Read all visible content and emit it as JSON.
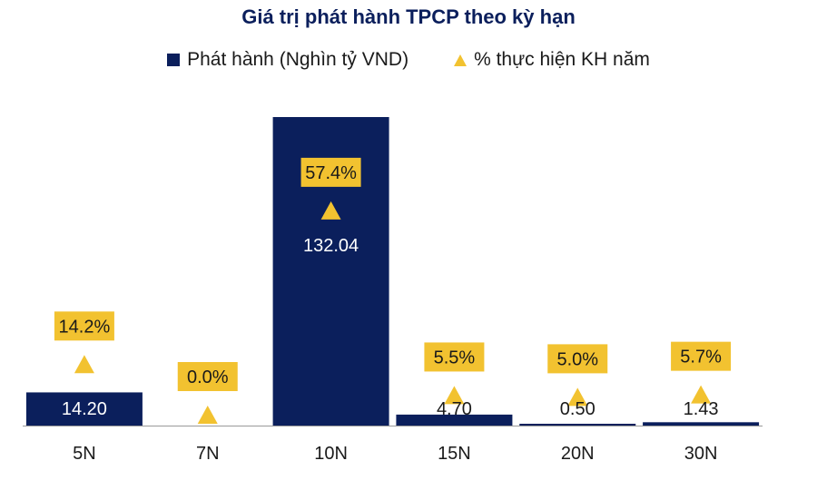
{
  "chart_data": {
    "type": "bar",
    "title": "Giá trị phát hành TPCP theo kỳ hạn",
    "categories": [
      "5N",
      "7N",
      "10N",
      "15N",
      "20N",
      "30N"
    ],
    "series": [
      {
        "name": "Phát hành (Nghìn tỷ VND)",
        "type": "bar",
        "values": [
          14.2,
          0,
          132.04,
          4.7,
          0.5,
          1.43
        ],
        "labels": [
          "14.20",
          "",
          "132.04",
          "4.70",
          "0.50",
          "1.43"
        ]
      },
      {
        "name": "% thực hiện KH năm",
        "type": "marker",
        "values": [
          14.2,
          0.0,
          57.4,
          5.5,
          5.0,
          5.7
        ],
        "labels": [
          "14.2%",
          "0.0%",
          "57.4%",
          "5.5%",
          "5.0%",
          "5.7%"
        ]
      }
    ],
    "ylim_bar": [
      0,
      132.04
    ],
    "ylim_pct": [
      0,
      64
    ],
    "grid": false,
    "legend_position": "top"
  },
  "colors": {
    "bar": "#0b1f5c",
    "marker": "#f2c230",
    "title": "#0b1f5c",
    "axis": "#9a9a9a"
  }
}
